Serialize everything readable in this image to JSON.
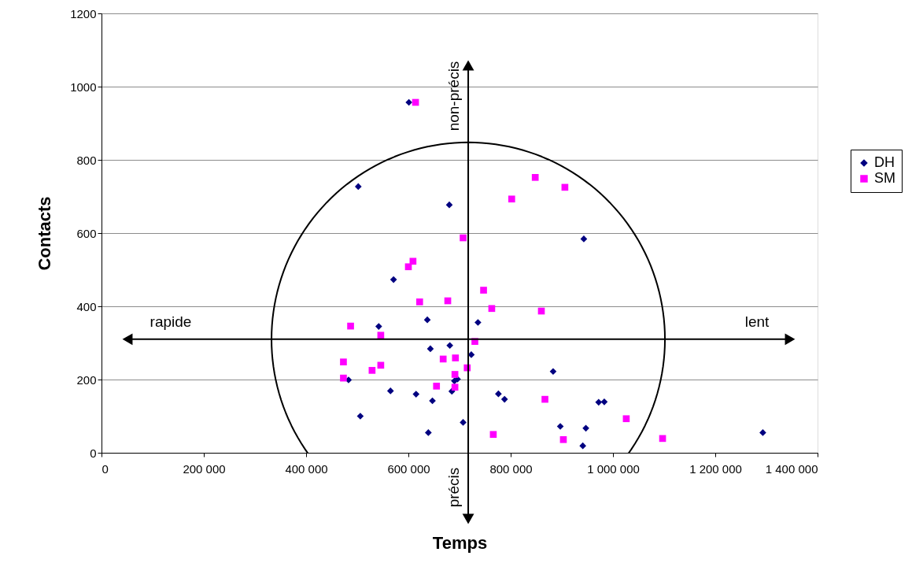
{
  "chart_data": {
    "type": "scatter",
    "xlabel": "Temps",
    "ylabel": "Contacts",
    "xlim": [
      0,
      1400000
    ],
    "ylim": [
      0,
      1200
    ],
    "xticks": [
      0,
      {
        "value": 200000,
        "label": "200 000"
      },
      {
        "value": 400000,
        "label": "400 000"
      },
      {
        "value": 600000,
        "label": "600 000"
      },
      {
        "value": 800000,
        "label": "800 000"
      },
      {
        "value": 1000000,
        "label": "1 000 000"
      },
      {
        "value": 1200000,
        "label": "1 200 000"
      },
      {
        "value": 1400000,
        "label": "1 400 000"
      }
    ],
    "yticks": [
      0,
      200,
      400,
      600,
      800,
      1000,
      1200
    ],
    "grid": "y",
    "legend": "right",
    "series": [
      {
        "name": "DH",
        "color": "#000080",
        "marker": "diamond",
        "x": [
          601000,
          502000,
          680000,
          571000,
          637000,
          736000,
          542000,
          643000,
          681000,
          723000,
          883000,
          483000,
          696000,
          690000,
          685000,
          565000,
          615000,
          776000,
          788000,
          647000,
          506000,
          707000,
          639000,
          897000,
          943000,
          972000,
          983000,
          947000,
          941000,
          1293000
        ],
        "values": [
          957,
          727,
          677,
          473,
          363,
          356,
          345,
          284,
          293,
          268,
          222,
          199,
          201,
          196,
          168,
          169,
          160,
          161,
          146,
          142,
          100,
          83,
          55,
          72,
          584,
          138,
          139,
          67,
          19,
          55
        ]
      },
      {
        "name": "SM",
        "color": "#ff00ff",
        "marker": "square",
        "x": [
          614000,
          848000,
          906000,
          802000,
          707000,
          609000,
          600000,
          747000,
          622000,
          677000,
          763000,
          860000,
          487000,
          546000,
          730000,
          668000,
          692000,
          473000,
          546000,
          529000,
          715000,
          691000,
          473000,
          655000,
          691000,
          867000,
          766000,
          903000,
          1026000,
          1097000
        ],
        "values": [
          957,
          752,
          725,
          693,
          587,
          523,
          508,
          444,
          412,
          415,
          394,
          387,
          346,
          321,
          304,
          256,
          259,
          248,
          239,
          225,
          232,
          214,
          204,
          182,
          179,
          146,
          50,
          36,
          93,
          39
        ]
      }
    ],
    "ref_lines": [
      {
        "axis": "y",
        "value": 310,
        "color": "#000000"
      },
      {
        "axis": "x",
        "value": 717000,
        "color": "#000000"
      }
    ],
    "annotations": [
      "rapide",
      "lent",
      "non-précis",
      "précis"
    ]
  }
}
